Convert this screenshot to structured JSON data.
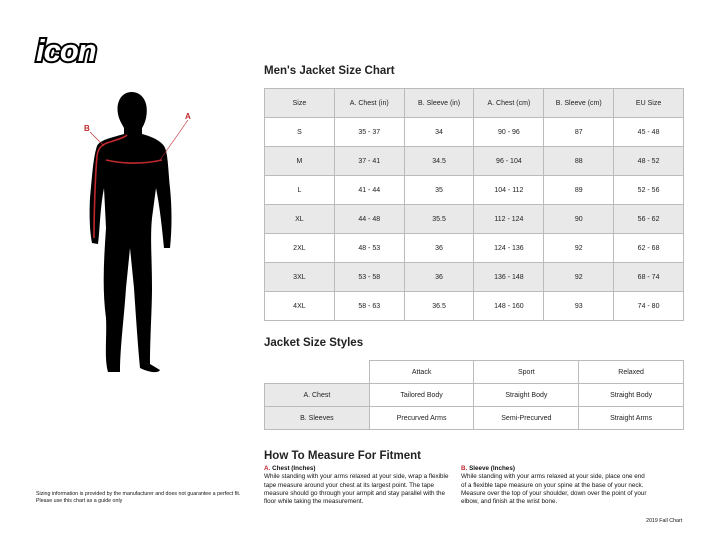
{
  "brand": {
    "logo": "icon"
  },
  "figure": {
    "label_a": "A",
    "label_b": "B",
    "accent": "#c0282d"
  },
  "size_chart": {
    "title": "Men's Jacket Size Chart",
    "headers": [
      "Size",
      "A. Chest (in)",
      "B. Sleeve (in)",
      "A. Chest (cm)",
      "B. Sleeve (cm)",
      "EU Size"
    ],
    "rows": [
      [
        "S",
        "35 - 37",
        "34",
        "90 - 96",
        "87",
        "45 - 48"
      ],
      [
        "M",
        "37 - 41",
        "34.5",
        "96 - 104",
        "88",
        "48 - 52"
      ],
      [
        "L",
        "41 - 44",
        "35",
        "104 - 112",
        "89",
        "52 - 56"
      ],
      [
        "XL",
        "44 - 48",
        "35.5",
        "112 - 124",
        "90",
        "56 - 62"
      ],
      [
        "2XL",
        "48 - 53",
        "36",
        "124 - 136",
        "92",
        "62 - 68"
      ],
      [
        "3XL",
        "53 - 58",
        "36",
        "136 - 148",
        "92",
        "68 - 74"
      ],
      [
        "4XL",
        "58 - 63",
        "36.5",
        "148 - 160",
        "93",
        "74 - 80"
      ]
    ]
  },
  "styles": {
    "title": "Jacket Size Styles",
    "headers": [
      "",
      "Attack",
      "Sport",
      "Relaxed"
    ],
    "rows": [
      [
        "A. Chest",
        "Tailored Body",
        "Straight Body",
        "Straight Body"
      ],
      [
        "B. Sleeves",
        "Precurved Arms",
        "Semi-Precurved",
        "Straight Arms"
      ]
    ]
  },
  "measure": {
    "title": "How To Measure For Fitment",
    "chest": {
      "letter": "A.",
      "heading": "Chest (Inches)",
      "text": "While standing with your arms relaxed at your side, wrap a flexible tape measure around your chest at its largest point. The tape measure should go through your armpit and stay parallel with the floor while taking the measurement."
    },
    "sleeve": {
      "letter": "B.",
      "heading": "Sleeve (Inches)",
      "text": "While standing with your arms relaxed at your side, place one end of a flexible tape measure on your spine at the base of your neck. Measure over the top of your shoulder, down over the point of your elbow, and finish at the wrist bone."
    }
  },
  "disclaimer": "Sizing information is provided by the manufacturer and does not guarantee a perfect fit. Please use this chart as a guide only",
  "footer": "2019 Fall Chart"
}
